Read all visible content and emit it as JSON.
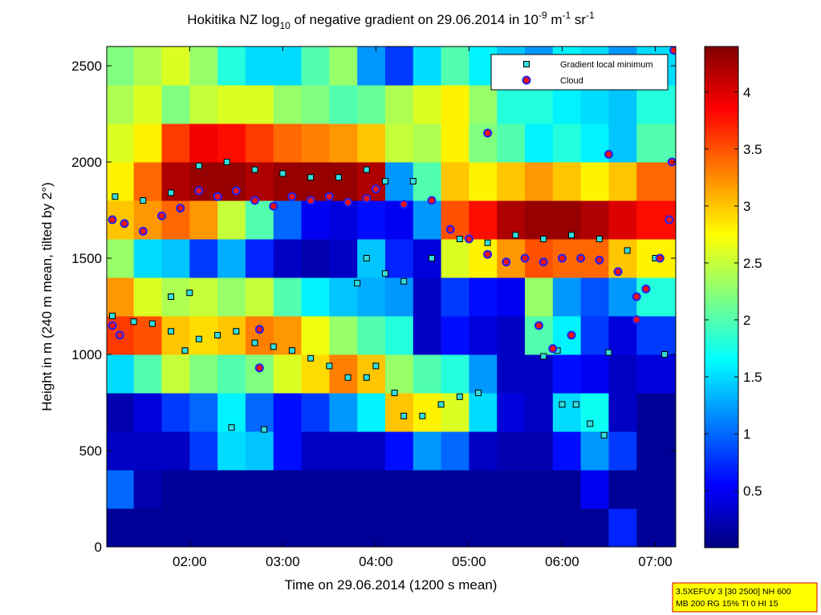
{
  "chart_data": {
    "type": "heatmap",
    "title": [
      "Hokitika NZ log",
      "10",
      " of negative gradient on 29.06.2014 in 10",
      "-9",
      " m",
      "-1",
      " sr",
      "-1"
    ],
    "xlabel": "Time on 29.06.2014 (1200 s mean)",
    "ylabel": "Height in m (240 m mean, tilted by 2°)",
    "xlim": [
      1.11,
      7.22
    ],
    "ylim": [
      0,
      2600
    ],
    "xticks": [
      {
        "value": 2,
        "label": "02:00"
      },
      {
        "value": 3,
        "label": "03:00"
      },
      {
        "value": 4,
        "label": "04:00"
      },
      {
        "value": 5,
        "label": "05:00"
      },
      {
        "value": 6,
        "label": "06:00"
      },
      {
        "value": 7,
        "label": "07:00"
      }
    ],
    "yticks": [
      0,
      500,
      1000,
      1500,
      2000,
      2500
    ],
    "colormap": "jet",
    "clim": [
      0,
      4.4
    ],
    "cticks": [
      0.5,
      1,
      1.5,
      2,
      2.5,
      3,
      3.5,
      4
    ],
    "x_edges": [
      1.11,
      1.4,
      1.7,
      2.0,
      2.3,
      2.6,
      2.9,
      3.2,
      3.5,
      3.8,
      4.1,
      4.4,
      4.7,
      5.0,
      5.3,
      5.6,
      5.9,
      6.2,
      6.5,
      6.8,
      7.22
    ],
    "y_edges": [
      0,
      200,
      400,
      600,
      800,
      1000,
      1200,
      1400,
      1600,
      1800,
      2000,
      2200,
      2400,
      2600
    ],
    "z": [
      [
        0.1,
        0.1,
        0.1,
        0.1,
        0.1,
        0.1,
        0.1,
        0.1,
        0.1,
        0.1,
        0.1,
        0.1,
        0.1,
        0.1,
        0.1,
        0.1,
        0.1,
        0.1,
        0.7,
        0.1
      ],
      [
        1.0,
        0.2,
        0.1,
        0.1,
        0.1,
        0.1,
        0.1,
        0.1,
        0.1,
        0.1,
        0.1,
        0.1,
        0.1,
        0.1,
        0.1,
        0.1,
        0.1,
        0.5,
        0.1,
        0.1
      ],
      [
        0.3,
        0.3,
        0.3,
        0.8,
        1.5,
        1.4,
        0.6,
        0.3,
        0.3,
        0.3,
        0.6,
        1.2,
        1.0,
        0.3,
        0.2,
        0.2,
        0.6,
        1.2,
        0.8,
        0.1
      ],
      [
        0.2,
        0.4,
        0.8,
        1.0,
        1.6,
        1.0,
        0.6,
        0.8,
        1.2,
        1.6,
        3.0,
        2.8,
        2.6,
        1.5,
        0.4,
        0.3,
        1.5,
        1.7,
        0.3,
        0.1
      ],
      [
        1.5,
        2.0,
        2.5,
        2.2,
        2.0,
        2.2,
        2.6,
        2.9,
        3.3,
        3.0,
        2.3,
        2.0,
        1.8,
        1.2,
        0.3,
        0.3,
        0.6,
        0.5,
        0.3,
        0.4
      ],
      [
        3.6,
        3.5,
        3.0,
        2.9,
        3.0,
        3.3,
        3.2,
        2.7,
        2.3,
        2.0,
        1.8,
        0.3,
        0.6,
        0.4,
        0.3,
        2.0,
        1.6,
        0.8,
        0.4,
        0.8
      ],
      [
        3.2,
        2.6,
        2.4,
        2.5,
        2.3,
        2.5,
        2.0,
        1.6,
        1.4,
        1.3,
        1.2,
        0.3,
        0.8,
        0.6,
        0.5,
        2.3,
        1.2,
        0.9,
        1.2,
        1.8
      ],
      [
        2.3,
        1.5,
        1.4,
        0.8,
        1.3,
        0.7,
        0.3,
        0.2,
        0.3,
        1.4,
        0.7,
        0.4,
        2.6,
        2.8,
        3.2,
        3.5,
        3.4,
        3.4,
        3.0,
        2.8
      ],
      [
        3.0,
        3.2,
        3.4,
        3.2,
        2.5,
        2.0,
        1.0,
        0.5,
        0.4,
        0.6,
        0.5,
        1.2,
        3.5,
        3.8,
        4.2,
        4.3,
        4.3,
        4.2,
        4.0,
        3.8
      ],
      [
        2.8,
        3.4,
        4.2,
        4.3,
        4.3,
        4.2,
        4.3,
        4.3,
        4.3,
        4.2,
        1.2,
        2.0,
        3.0,
        2.8,
        3.0,
        3.2,
        3.0,
        2.8,
        3.0,
        3.4
      ],
      [
        2.6,
        2.8,
        3.6,
        3.9,
        3.8,
        3.6,
        3.4,
        3.3,
        3.2,
        3.0,
        2.5,
        2.4,
        2.8,
        2.2,
        2.0,
        1.6,
        1.8,
        1.6,
        1.4,
        2.0
      ],
      [
        2.4,
        2.6,
        2.2,
        2.5,
        2.6,
        2.6,
        2.3,
        2.2,
        2.0,
        2.1,
        2.4,
        2.6,
        2.8,
        2.3,
        1.8,
        1.8,
        1.6,
        1.5,
        1.4,
        1.8
      ],
      [
        2.2,
        2.4,
        2.6,
        2.3,
        1.8,
        1.5,
        1.5,
        2.0,
        2.3,
        1.2,
        0.8,
        1.5,
        2.0,
        1.6,
        1.4,
        1.2,
        1.6,
        1.5,
        1.2,
        1.5
      ]
    ],
    "series": [
      {
        "name": "Gradient local minimum",
        "marker": "square",
        "color": "#33dddd",
        "edgecolor": "#000000",
        "x": [
          1.17,
          1.4,
          1.6,
          1.8,
          1.95,
          2.1,
          2.3,
          2.5,
          2.7,
          2.9,
          3.1,
          3.3,
          3.5,
          3.7,
          3.9,
          4.0,
          4.2,
          4.3,
          4.5,
          4.7,
          4.9,
          5.1,
          2.45,
          2.8,
          5.8,
          5.95,
          6.0,
          6.15,
          6.3,
          6.45,
          6.5,
          7.1,
          1.2,
          1.5,
          1.8,
          2.1,
          2.4,
          2.7,
          3.0,
          3.3,
          3.6,
          3.9,
          4.1,
          4.4,
          4.6,
          4.9,
          5.2,
          5.5,
          5.8,
          6.1,
          6.4,
          6.7,
          7.0,
          3.9,
          4.1,
          4.3,
          3.8,
          1.8,
          2.0
        ],
        "values": [
          1200,
          1170,
          1160,
          1120,
          1020,
          1080,
          1100,
          1120,
          1060,
          1040,
          1020,
          980,
          940,
          880,
          880,
          940,
          800,
          680,
          680,
          740,
          780,
          800,
          620,
          610,
          990,
          1020,
          740,
          740,
          640,
          580,
          1010,
          1000,
          1820,
          1800,
          1840,
          1980,
          2000,
          1960,
          1940,
          1920,
          1920,
          1960,
          1900,
          1900,
          1500,
          1600,
          1580,
          1620,
          1600,
          1620,
          1600,
          1540,
          1500,
          1500,
          1420,
          1380,
          1370,
          1300,
          1320
        ]
      },
      {
        "name": "Cloud",
        "marker": "circle",
        "color": "#ee1111",
        "edgecolor": "#2222ee",
        "x": [
          1.17,
          1.3,
          1.5,
          1.7,
          1.9,
          2.1,
          2.3,
          2.5,
          2.7,
          2.9,
          3.1,
          3.3,
          3.5,
          3.7,
          3.9,
          4.0,
          4.3,
          4.6,
          4.8,
          5.0,
          5.2,
          5.4,
          5.6,
          5.8,
          6.0,
          6.2,
          6.4,
          6.6,
          6.8,
          6.9,
          7.05,
          7.15,
          7.18,
          7.2,
          1.17,
          1.25,
          2.75,
          2.75,
          5.75,
          5.9,
          6.1,
          5.2,
          6.5,
          6.8
        ],
        "values": [
          1700,
          1680,
          1640,
          1720,
          1760,
          1850,
          1820,
          1850,
          1800,
          1770,
          1820,
          1800,
          1820,
          1790,
          1810,
          1860,
          1780,
          1800,
          1650,
          1600,
          1520,
          1480,
          1500,
          1480,
          1500,
          1500,
          1490,
          1430,
          1300,
          1340,
          1500,
          1700,
          2000,
          2580,
          1150,
          1100,
          930,
          1130,
          1150,
          1030,
          1100,
          2150,
          2040,
          1180
        ]
      }
    ],
    "annotation": [
      "3.5XEFUV 3 [30 2500] NH 600",
      "MB 200 RG 15% TI 0 HI 15"
    ]
  }
}
